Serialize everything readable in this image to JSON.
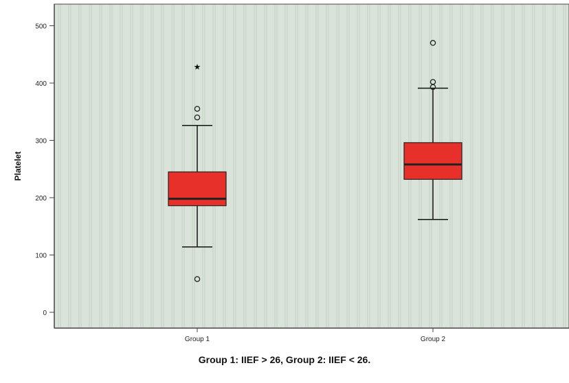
{
  "chart_data": {
    "type": "box",
    "ylabel": "Platelet",
    "xlabel": "",
    "ylim": [
      0,
      520
    ],
    "yticks": [
      0,
      100,
      200,
      300,
      400,
      500
    ],
    "categories": [
      "Group 1",
      "Group 2"
    ],
    "boxes": [
      {
        "category": "Group 1",
        "whisker_low": 114,
        "q1": 186,
        "median": 198,
        "q3": 245,
        "whisker_high": 326,
        "outliers": [
          58,
          340,
          355
        ],
        "extremes": [
          428
        ]
      },
      {
        "category": "Group 2",
        "whisker_low": 162,
        "q1": 232,
        "median": 258,
        "q3": 296,
        "whisker_high": 391,
        "outliers": [
          393,
          402,
          470
        ],
        "extremes": []
      }
    ],
    "grid": false,
    "legend": "none",
    "colors": {
      "box_fill": "#e8302a",
      "median_line": "#222222",
      "plot_background": "#d9e3d9"
    }
  },
  "caption": "Group 1: IIEF > 26, Group 2: IIEF < 26."
}
